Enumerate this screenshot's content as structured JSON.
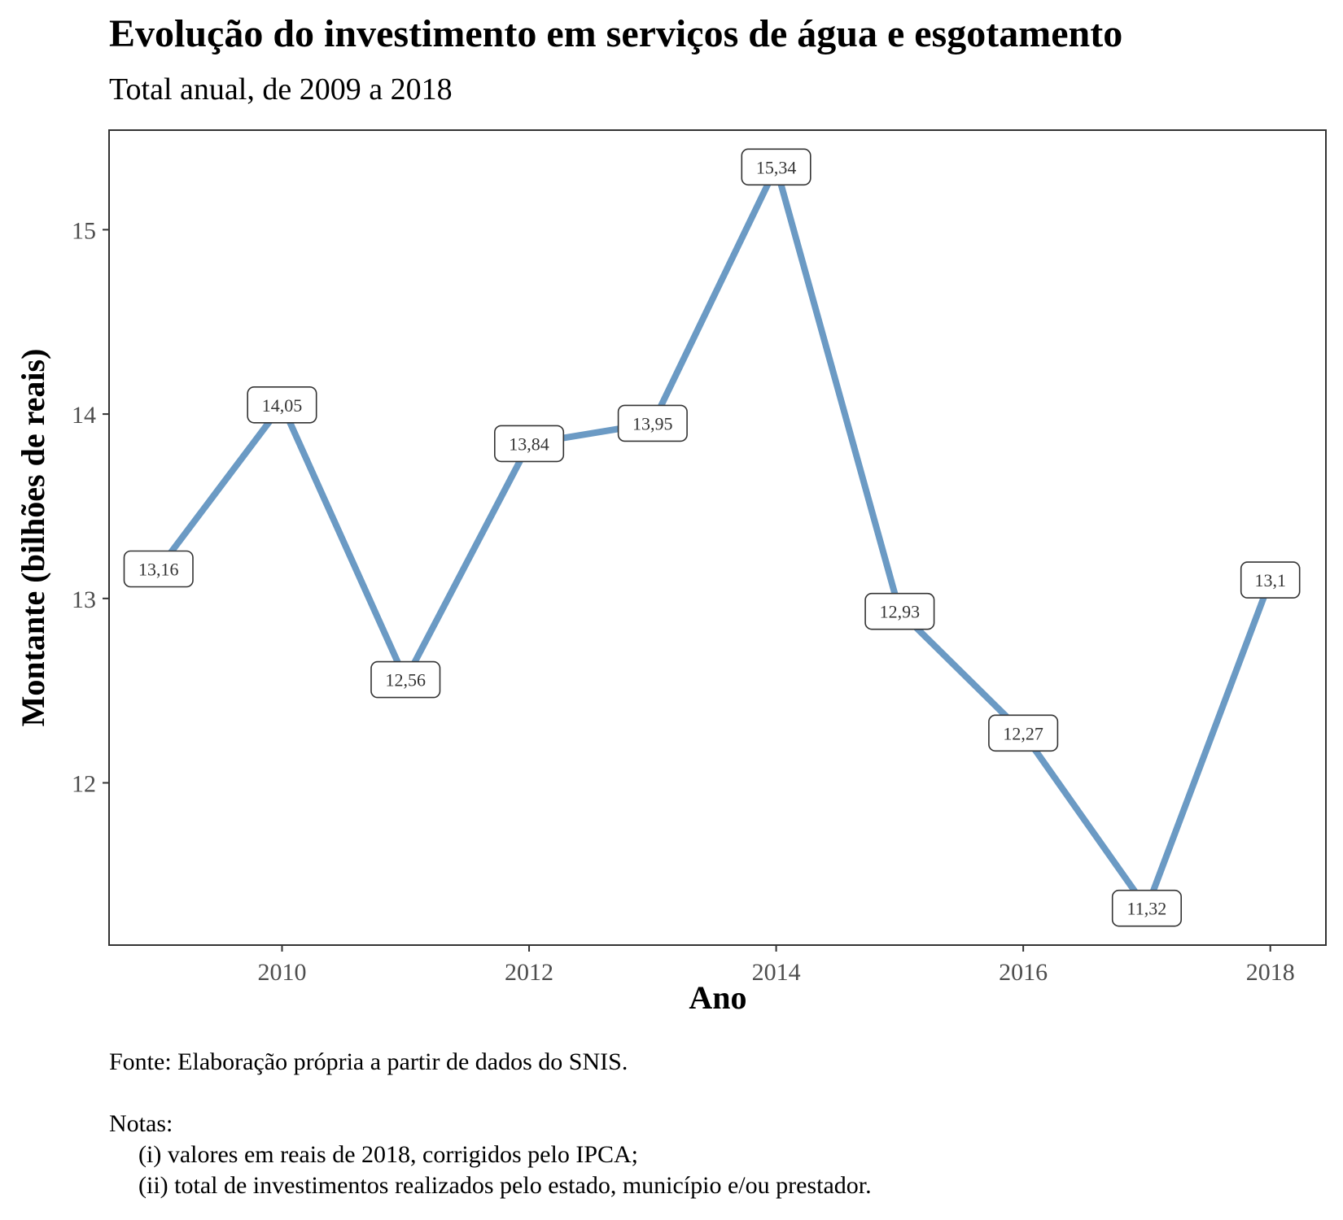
{
  "chart_data": {
    "type": "line",
    "title": "Evolução do investimento em serviços de água e esgotamento",
    "subtitle": "Total anual, de 2009 a 2018",
    "xlabel": "Ano",
    "ylabel": "Montante (bilhões de reais)",
    "x": [
      2009,
      2010,
      2011,
      2012,
      2013,
      2014,
      2015,
      2016,
      2017,
      2018
    ],
    "values": [
      13.16,
      14.05,
      12.56,
      13.84,
      13.95,
      15.34,
      12.93,
      12.27,
      11.32,
      13.1
    ],
    "value_labels": [
      "13,16",
      "14,05",
      "12,56",
      "13,84",
      "13,95",
      "15,34",
      "12,93",
      "12,27",
      "11,32",
      "13,1"
    ],
    "x_ticks": [
      "2010",
      "2012",
      "2014",
      "2016",
      "2018"
    ],
    "y_ticks": [
      "12",
      "13",
      "14",
      "15"
    ],
    "xlim": [
      2008.6,
      2018.45
    ],
    "ylim": [
      11.12,
      15.54
    ],
    "line_color": "#6b9ac4",
    "grid": false,
    "legend": "none"
  },
  "caption": {
    "source": "Fonte: Elaboração própria a partir de dados do SNIS.",
    "notes_heading": "Notas:",
    "note_1": "(i) valores em reais de 2018, corrigidos pelo IPCA;",
    "note_2": "(ii) total de investimentos realizados pelo estado, município e/ou prestador."
  }
}
